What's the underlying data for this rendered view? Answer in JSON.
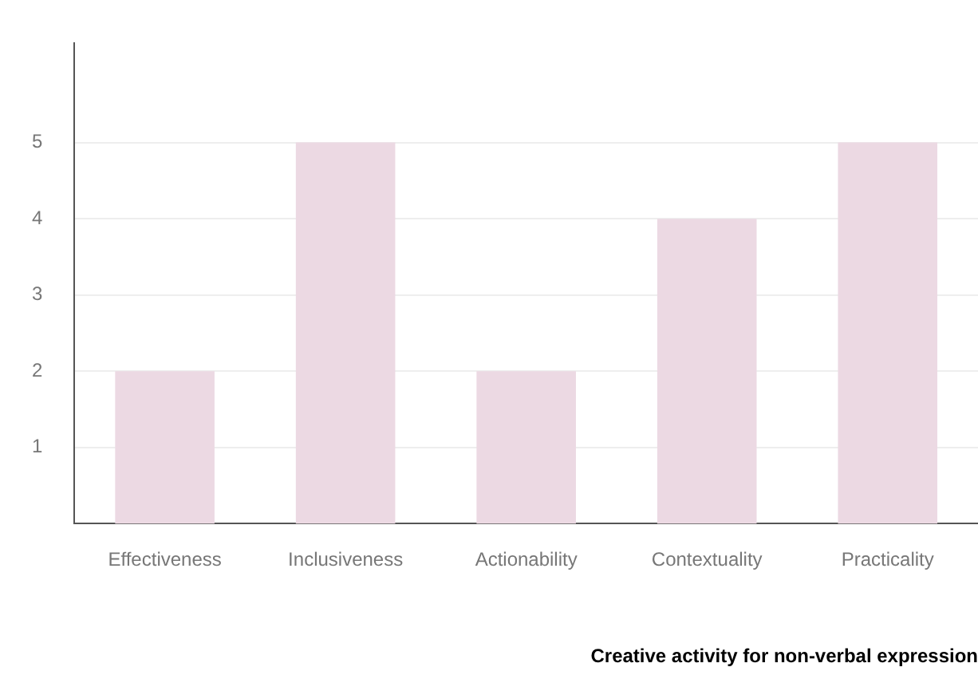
{
  "chart_data": {
    "type": "bar",
    "title": "Creative activity for non-verbal expression",
    "categories": [
      "Effectiveness",
      "Inclusiveness",
      "Actionability",
      "Contextuality",
      "Practicality"
    ],
    "values": [
      2,
      5,
      2,
      4,
      5
    ],
    "color": "#ecd9e3",
    "ylim": [
      0,
      6.3
    ],
    "yticks": [
      1,
      2,
      3,
      4,
      5
    ],
    "grid": "y",
    "legend": false
  }
}
